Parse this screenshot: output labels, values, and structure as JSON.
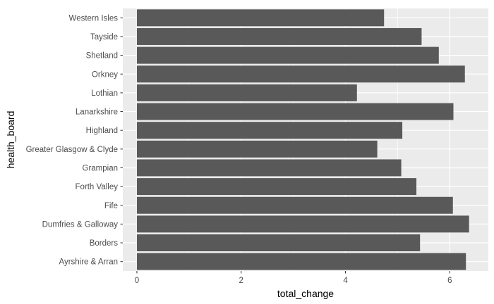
{
  "chart_data": {
    "type": "bar",
    "orientation": "horizontal",
    "title": "",
    "xlabel": "total_change",
    "ylabel": "health_board",
    "xlim": [
      -0.27,
      6.74
    ],
    "xticks": [
      0,
      2,
      4,
      6
    ],
    "xtick_labels": [
      "0",
      "2",
      "4",
      "6"
    ],
    "grid": true,
    "legend": "none",
    "categories": [
      "Western Isles",
      "Tayside",
      "Shetland",
      "Orkney",
      "Lothian",
      "Lanarkshire",
      "Highland",
      "Greater Glasgow & Clyde",
      "Grampian",
      "Forth Valley",
      "Fife",
      "Dumfries & Galloway",
      "Borders",
      "Ayrshire & Arran"
    ],
    "values": [
      4.74,
      5.46,
      5.79,
      6.29,
      4.22,
      6.07,
      5.09,
      4.61,
      5.07,
      5.36,
      6.06,
      6.37,
      5.43,
      6.31
    ],
    "colors": {
      "panel_bg": "#ebebeb",
      "grid_major": "#ffffff",
      "bar": "#595959",
      "tick_text": "#4d4d4d",
      "tick_mark": "#333333",
      "axis_title": "#000000"
    }
  }
}
